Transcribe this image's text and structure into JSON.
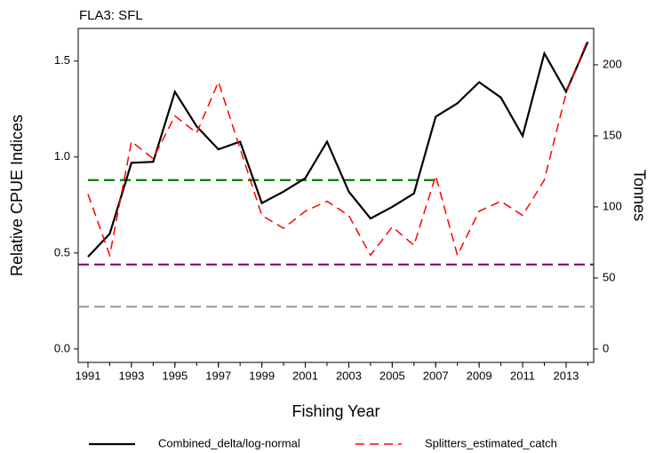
{
  "chart_data": {
    "type": "line",
    "title": "FLA3: SFL",
    "x_label": "Fishing Year",
    "y_label": "Relative CPUE Indices",
    "y2_label": "Tonnes",
    "x": [
      1991,
      1992,
      1993,
      1994,
      1995,
      1996,
      1997,
      1998,
      1999,
      2000,
      2001,
      2002,
      2003,
      2004,
      2005,
      2006,
      2007,
      2008,
      2009,
      2010,
      2011,
      2012,
      2013,
      2014
    ],
    "series": [
      {
        "name": "Combined_delta/log-normal",
        "color": "#000000",
        "dash": "solid",
        "values": [
          0.48,
          0.6,
          0.97,
          0.975,
          1.34,
          1.16,
          1.04,
          1.08,
          0.76,
          0.82,
          0.89,
          1.08,
          0.82,
          0.68,
          0.74,
          0.81,
          1.21,
          1.28,
          1.39,
          1.31,
          1.11,
          1.54,
          1.34,
          1.6
        ]
      },
      {
        "name": "Splitters_estimated_catch",
        "color": "#ff0000",
        "dash": "dashed",
        "axis": "y2",
        "values": [
          109,
          66,
          146,
          134,
          164,
          152,
          188,
          141,
          94,
          85,
          97,
          104,
          94,
          66,
          86,
          73,
          122,
          66,
          97,
          104,
          94,
          119,
          180,
          218
        ]
      }
    ],
    "reference_lines": [
      {
        "value": 0.88,
        "color": "#008000",
        "x": [
          1991,
          2007
        ]
      },
      {
        "value": 0.44,
        "color": "#800080"
      },
      {
        "value": 0.22,
        "color": "#999999"
      }
    ],
    "xlim": [
      1990.55,
      2014.27
    ],
    "xticks": [
      1991,
      1993,
      1995,
      1997,
      1999,
      2001,
      2003,
      2005,
      2007,
      2009,
      2011,
      2013
    ],
    "ylim": [
      -0.07,
      1.67
    ],
    "yticks": [
      {
        "value": 0,
        "label": "0.0"
      },
      0.5,
      {
        "value": 1,
        "label": "1.0"
      },
      1.5
    ],
    "y2lim": [
      -9.4,
      225.6
    ],
    "y2ticks": [
      0,
      50,
      100,
      150,
      200
    ],
    "legend": "bottom"
  }
}
